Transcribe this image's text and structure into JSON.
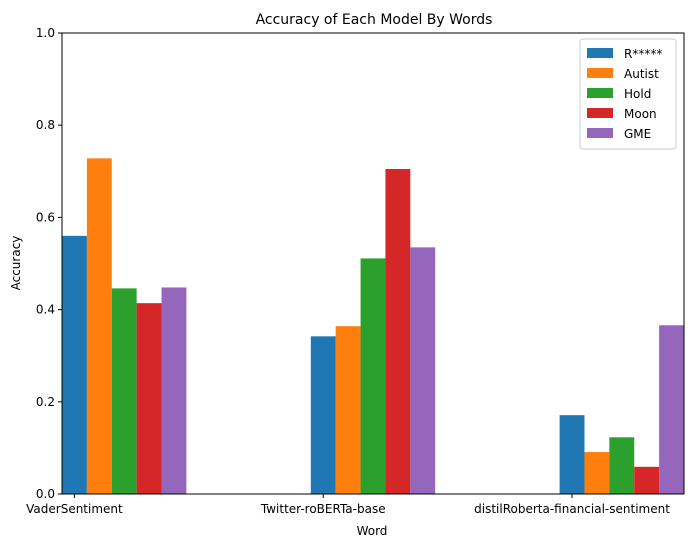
{
  "chart_data": {
    "type": "bar",
    "title": "Accuracy of Each Model By Words",
    "xlabel": "Word",
    "ylabel": "Accuracy",
    "ylim": [
      0,
      1
    ],
    "yticks": [
      "0.0",
      "0.2",
      "0.4",
      "0.6",
      "0.8",
      "1.0"
    ],
    "categories": [
      "VaderSentiment",
      "Twitter-roBERTa-base",
      "distilRoberta-financial-sentiment"
    ],
    "series": [
      {
        "name": "R*****",
        "color": "#1f77b4",
        "values": [
          0.56,
          0.342,
          0.171
        ]
      },
      {
        "name": "Autist",
        "color": "#ff7f0e",
        "values": [
          0.728,
          0.364,
          0.091
        ]
      },
      {
        "name": "Hold",
        "color": "#2ca02c",
        "values": [
          0.446,
          0.511,
          0.123
        ]
      },
      {
        "name": "Moon",
        "color": "#d62728",
        "values": [
          0.414,
          0.705,
          0.059
        ]
      },
      {
        "name": "GME",
        "color": "#9467bd",
        "values": [
          0.448,
          0.535,
          0.366
        ]
      }
    ],
    "legend_position": "top-right",
    "grid": false
  }
}
